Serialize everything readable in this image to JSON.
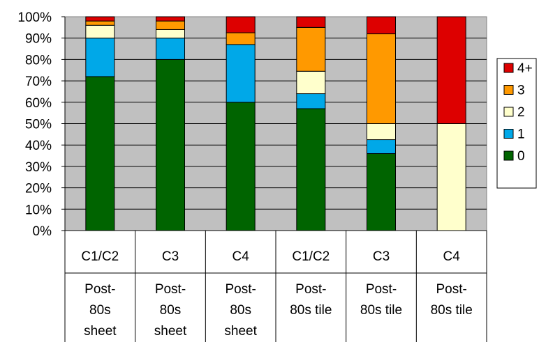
{
  "chart_data": {
    "type": "bar",
    "stacked": true,
    "percent": true,
    "ylim": [
      0,
      100
    ],
    "y_ticks": [
      "0%",
      "10%",
      "20%",
      "30%",
      "40%",
      "50%",
      "60%",
      "70%",
      "80%",
      "90%",
      "100%"
    ],
    "grid": true,
    "legend_position": "right",
    "categories": [
      {
        "level1": "C1/C2",
        "level2": "Post-80s sheet"
      },
      {
        "level1": "C3",
        "level2": "Post-80s sheet"
      },
      {
        "level1": "C4",
        "level2": "Post-80s sheet"
      },
      {
        "level1": "C1/C2",
        "level2": "Post-80s tile"
      },
      {
        "level1": "C3",
        "level2": "Post-80s tile"
      },
      {
        "level1": "C4",
        "level2": "Post-80s tile"
      }
    ],
    "level2_lines": [
      [
        "Post-",
        "80s",
        "sheet"
      ],
      [
        "Post-",
        "80s",
        "sheet"
      ],
      [
        "Post-",
        "80s",
        "sheet"
      ],
      [
        "Post-",
        "80s tile"
      ],
      [
        "Post-",
        "80s tile"
      ],
      [
        "Post-",
        "80s tile"
      ]
    ],
    "series": [
      {
        "name": "0",
        "color": "#006400",
        "values": [
          72,
          80,
          60,
          57,
          36,
          0
        ]
      },
      {
        "name": "1",
        "color": "#00A8E8",
        "values": [
          18,
          10,
          27,
          7,
          6.5,
          0
        ]
      },
      {
        "name": "2",
        "color": "#FFFFCC",
        "values": [
          6,
          4,
          0,
          10.5,
          7.5,
          50
        ]
      },
      {
        "name": "3",
        "color": "#FF9900",
        "values": [
          2,
          4,
          5.5,
          20.5,
          42,
          0
        ]
      },
      {
        "name": "4+",
        "color": "#DD0000",
        "values": [
          2,
          2,
          7.5,
          5,
          8,
          50
        ]
      }
    ],
    "legend_order": [
      "4+",
      "3",
      "2",
      "1",
      "0"
    ]
  }
}
